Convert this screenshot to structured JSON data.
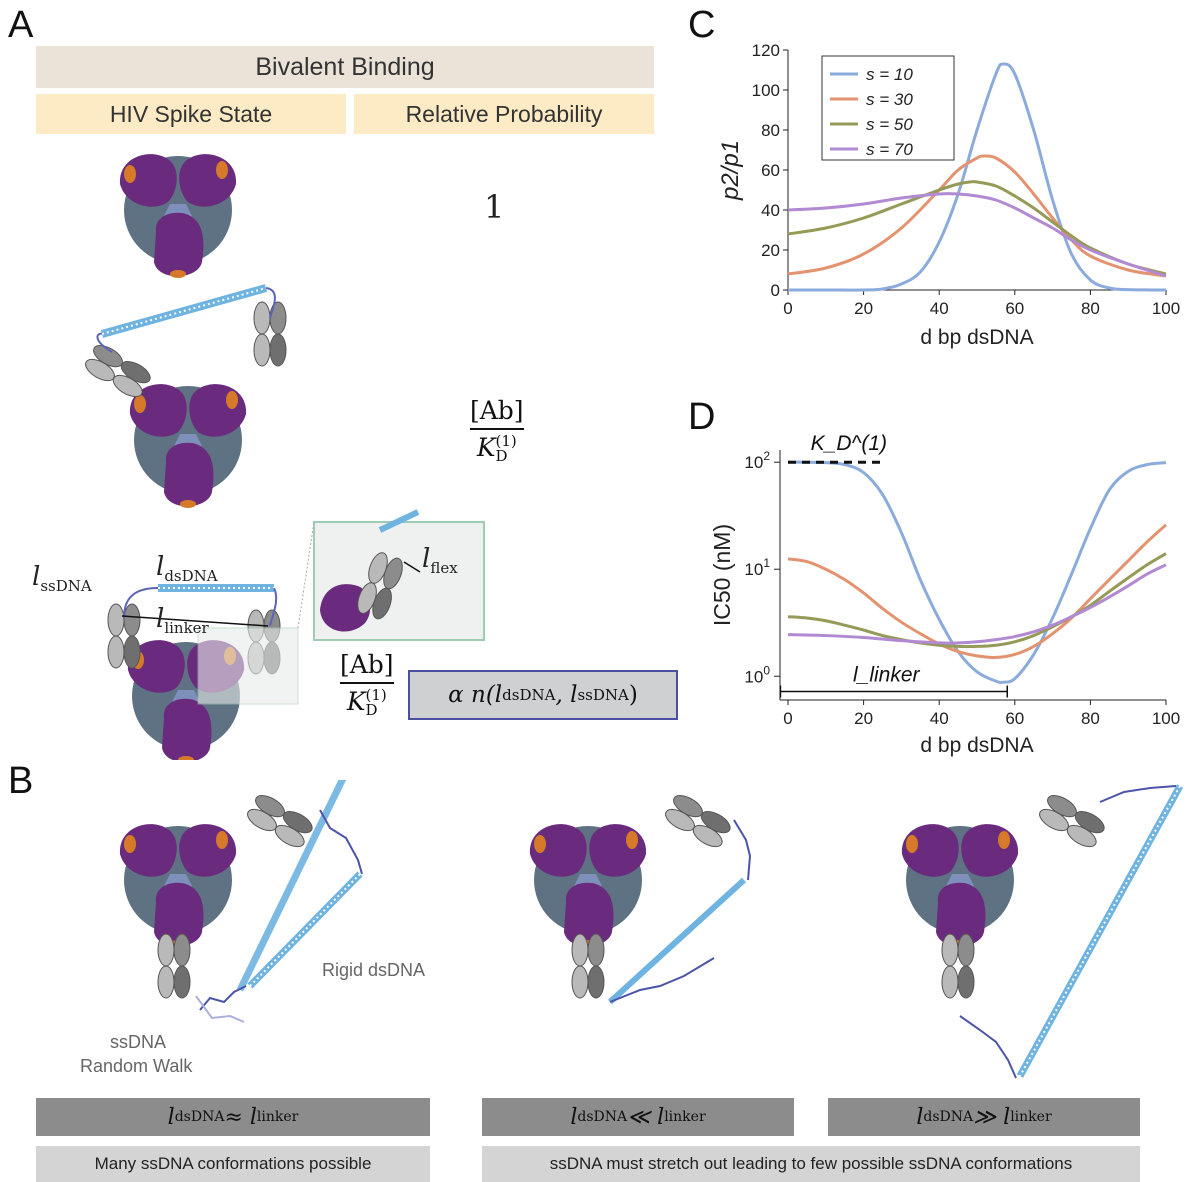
{
  "panels": {
    "a": "A",
    "b": "B",
    "c": "C",
    "d": "D"
  },
  "panel_a": {
    "header": "Bivalent Binding",
    "col1": "HIV Spike State",
    "col2": "Relative Probability",
    "prob1": "1",
    "frac_num": "[Ab]",
    "frac_den": "K",
    "frac_den_sub": "D",
    "frac_den_sup": "(1)",
    "alpha_expr": "α n(l",
    "alpha_sub1": "dsDNA",
    "alpha_mid": ", l",
    "alpha_sub2": "ssDNA",
    "alpha_end": ")",
    "label_ssDNA": "l",
    "label_ssDNA_sub": "ssDNA",
    "label_dsDNA": "l",
    "label_dsDNA_sub": "dsDNA",
    "label_linker": "l",
    "label_linker_sub": "linker",
    "label_flex": "l",
    "label_flex_sub": "flex"
  },
  "panel_b": {
    "rigid_label": "Rigid dsDNA",
    "ssdna_label1": "ssDNA",
    "ssdna_label2": "Random Walk",
    "box1_expr_l": "l",
    "box1_sub": "dsDNA",
    "box1_op": " ≈ l",
    "box1_sub2": "linker",
    "box2_op": " ≪ l",
    "box3_op": " ≫ l",
    "caption1": "Many ssDNA conformations possible",
    "caption2": "ssDNA must stretch out leading to few possible ssDNA conformations"
  },
  "colors": {
    "s10": "#8aabdc",
    "s30": "#e3936f",
    "s50": "#959a56",
    "s70": "#b28ad3",
    "purple": "#6a2a7e",
    "spike": "#5e7283",
    "dna": "#6fb3e0"
  },
  "chart_data": [
    {
      "type": "line",
      "title": "",
      "xlabel": "d bp dsDNA",
      "ylabel": "p2/p1",
      "xlim": [
        0,
        100
      ],
      "ylim": [
        0,
        120
      ],
      "xticks": [
        0,
        20,
        40,
        60,
        80,
        100
      ],
      "yticks": [
        0,
        20,
        40,
        60,
        80,
        100,
        120
      ],
      "legend_position": "top-left",
      "series": [
        {
          "name": "s = 10",
          "x": [
            0,
            10,
            20,
            25,
            30,
            35,
            40,
            45,
            50,
            55,
            57,
            60,
            65,
            70,
            75,
            80,
            85,
            90,
            100
          ],
          "y": [
            0,
            0,
            0,
            0.5,
            3,
            9,
            24,
            48,
            80,
            108,
            113,
            108,
            80,
            45,
            18,
            5,
            1,
            0.2,
            0
          ]
        },
        {
          "name": "s = 30",
          "x": [
            0,
            10,
            20,
            30,
            40,
            45,
            50,
            52,
            55,
            60,
            65,
            70,
            75,
            80,
            90,
            100
          ],
          "y": [
            8,
            11,
            18,
            31,
            50,
            60,
            66,
            67,
            66,
            59,
            48,
            36,
            25,
            17,
            10,
            7
          ]
        },
        {
          "name": "s = 50",
          "x": [
            0,
            10,
            20,
            30,
            40,
            45,
            48,
            50,
            55,
            60,
            65,
            70,
            75,
            80,
            90,
            100
          ],
          "y": [
            28,
            31,
            36,
            43,
            50,
            53,
            54,
            54,
            52,
            47,
            41,
            34,
            27,
            21,
            13,
            8
          ]
        },
        {
          "name": "s = 70",
          "x": [
            0,
            10,
            20,
            30,
            40,
            45,
            50,
            55,
            60,
            65,
            70,
            75,
            80,
            90,
            100
          ],
          "y": [
            40,
            41,
            43,
            46,
            48,
            48,
            47,
            45,
            41,
            36,
            31,
            25,
            20,
            13,
            7
          ]
        }
      ]
    },
    {
      "type": "line",
      "title": "",
      "xlabel": "d bp dsDNA",
      "ylabel": "IC50 (nM)",
      "xlim": [
        0,
        100
      ],
      "ylim": [
        0.6,
        130
      ],
      "yscale": "log",
      "xticks": [
        0,
        20,
        40,
        60,
        80,
        100
      ],
      "yticks_labels": [
        "10^0",
        "10^1",
        "10^2"
      ],
      "annotations": [
        "K_D^(1)",
        "l_linker"
      ],
      "series": [
        {
          "name": "s = 10",
          "x": [
            0,
            5,
            10,
            15,
            20,
            25,
            30,
            35,
            40,
            45,
            50,
            55,
            57,
            60,
            65,
            70,
            75,
            80,
            85,
            90,
            95,
            100
          ],
          "y": [
            100,
            100,
            99,
            95,
            80,
            50,
            22,
            8,
            3.4,
            1.7,
            1.1,
            0.9,
            0.88,
            0.95,
            1.6,
            3.5,
            9,
            24,
            55,
            82,
            95,
            99
          ]
        },
        {
          "name": "s = 30",
          "x": [
            0,
            5,
            10,
            15,
            20,
            25,
            30,
            35,
            40,
            45,
            50,
            55,
            60,
            65,
            70,
            75,
            80,
            85,
            90,
            95,
            100
          ],
          "y": [
            12.5,
            11.8,
            10,
            8,
            6,
            4.3,
            3.2,
            2.5,
            2.0,
            1.7,
            1.55,
            1.5,
            1.6,
            1.9,
            2.5,
            3.5,
            5.3,
            8,
            12,
            18,
            26
          ]
        },
        {
          "name": "s = 50",
          "x": [
            0,
            5,
            10,
            15,
            20,
            25,
            30,
            35,
            40,
            45,
            50,
            55,
            60,
            65,
            70,
            75,
            80,
            85,
            90,
            95,
            100
          ],
          "y": [
            3.6,
            3.5,
            3.3,
            3.0,
            2.7,
            2.4,
            2.2,
            2.05,
            1.95,
            1.9,
            1.9,
            1.95,
            2.1,
            2.4,
            2.9,
            3.6,
            4.6,
            6.2,
            8.3,
            11,
            14
          ]
        },
        {
          "name": "s = 70",
          "x": [
            0,
            10,
            20,
            30,
            40,
            45,
            50,
            55,
            60,
            65,
            70,
            75,
            80,
            85,
            90,
            95,
            100
          ],
          "y": [
            2.45,
            2.4,
            2.3,
            2.15,
            2.05,
            2.05,
            2.1,
            2.2,
            2.35,
            2.6,
            3.0,
            3.6,
            4.4,
            5.5,
            7,
            9,
            11
          ]
        }
      ]
    }
  ]
}
